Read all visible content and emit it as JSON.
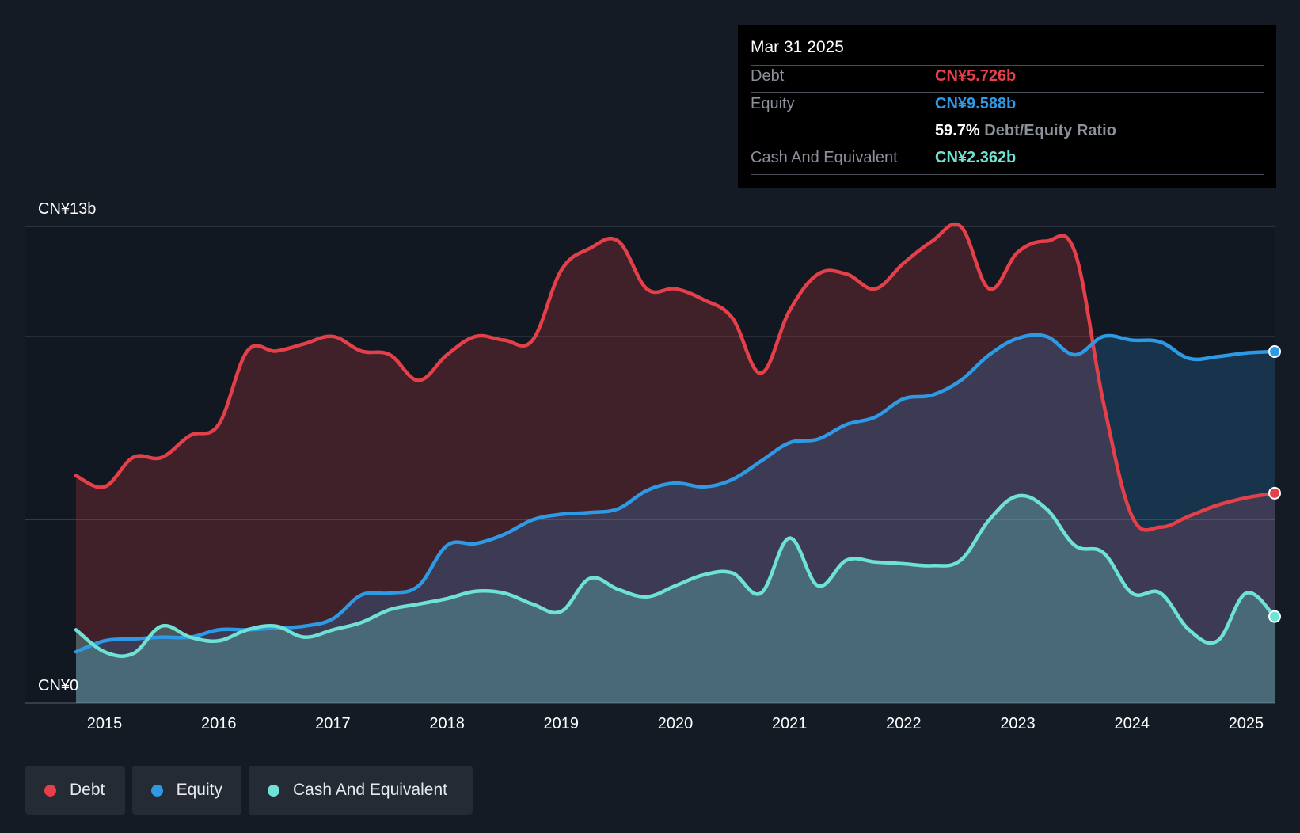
{
  "tooltip": {
    "date": "Mar 31 2025",
    "rows": [
      {
        "label": "Debt",
        "value": "CN¥5.726b",
        "color": "#e5404a"
      },
      {
        "label": "Equity",
        "value": "CN¥9.588b",
        "color": "#2e9ae6"
      },
      {
        "label": "Cash And Equivalent",
        "value": "CN¥2.362b",
        "color": "#6ee3d5"
      }
    ],
    "ratio_value": "59.7%",
    "ratio_label": "Debt/Equity Ratio"
  },
  "legend": [
    {
      "label": "Debt",
      "color": "#e5404a"
    },
    {
      "label": "Equity",
      "color": "#2e9ae6"
    },
    {
      "label": "Cash And Equivalent",
      "color": "#6ee3d5"
    }
  ],
  "chart_data": {
    "type": "area",
    "title": "",
    "xlabel": "",
    "ylabel": "",
    "ylim": [
      0,
      13
    ],
    "y_unit": "CN¥ billions",
    "y_tick_labels": [
      {
        "value": 13,
        "label": "CN¥13b"
      },
      {
        "value": 0,
        "label": "CN¥0"
      }
    ],
    "gridline_values": [
      13,
      10,
      5,
      0
    ],
    "xlim": [
      2014.75,
      2025.25
    ],
    "x_ticks": [
      2015,
      2016,
      2017,
      2018,
      2019,
      2020,
      2021,
      2022,
      2023,
      2024,
      2025
    ],
    "x_tick_labels": [
      "2015",
      "2016",
      "2017",
      "2018",
      "2019",
      "2020",
      "2021",
      "2022",
      "2023",
      "2024",
      "2025"
    ],
    "forecast_start": 2023.8,
    "x": [
      2014.75,
      2015.0,
      2015.25,
      2015.5,
      2015.75,
      2016.0,
      2016.25,
      2016.5,
      2016.75,
      2017.0,
      2017.25,
      2017.5,
      2017.75,
      2018.0,
      2018.25,
      2018.5,
      2018.75,
      2019.0,
      2019.25,
      2019.5,
      2019.75,
      2020.0,
      2020.25,
      2020.5,
      2020.75,
      2021.0,
      2021.25,
      2021.5,
      2021.75,
      2022.0,
      2022.25,
      2022.5,
      2022.75,
      2023.0,
      2023.25,
      2023.5,
      2023.75,
      2024.0,
      2024.25,
      2024.5,
      2024.75,
      2025.0,
      2025.25
    ],
    "series": [
      {
        "name": "Debt",
        "color": "#e5404a",
        "values": [
          6.2,
          5.9,
          6.7,
          6.7,
          7.3,
          7.6,
          9.6,
          9.6,
          9.8,
          10.0,
          9.6,
          9.5,
          8.8,
          9.5,
          10.0,
          9.9,
          9.9,
          11.8,
          12.4,
          12.6,
          11.3,
          11.3,
          11.0,
          10.5,
          9.0,
          10.7,
          11.7,
          11.7,
          11.3,
          12.0,
          12.6,
          13.0,
          11.3,
          12.3,
          12.6,
          12.3,
          8.2,
          5.1,
          4.8,
          5.1,
          5.4,
          5.6,
          5.726
        ]
      },
      {
        "name": "Equity",
        "color": "#2e9ae6",
        "values": [
          1.4,
          1.7,
          1.75,
          1.8,
          1.8,
          2.0,
          2.0,
          2.05,
          2.1,
          2.3,
          2.95,
          3.0,
          3.2,
          4.3,
          4.35,
          4.6,
          5.0,
          5.15,
          5.2,
          5.3,
          5.8,
          6.0,
          5.9,
          6.1,
          6.6,
          7.1,
          7.2,
          7.6,
          7.8,
          8.3,
          8.4,
          8.8,
          9.5,
          9.95,
          10.0,
          9.5,
          10.0,
          9.9,
          9.85,
          9.4,
          9.45,
          9.55,
          9.588
        ]
      },
      {
        "name": "Cash And Equivalent",
        "color": "#6ee3d5",
        "values": [
          2.0,
          1.4,
          1.35,
          2.1,
          1.8,
          1.7,
          2.0,
          2.1,
          1.8,
          2.0,
          2.2,
          2.55,
          2.7,
          2.85,
          3.05,
          3.0,
          2.7,
          2.5,
          3.4,
          3.1,
          2.9,
          3.2,
          3.5,
          3.55,
          3.0,
          4.5,
          3.2,
          3.9,
          3.85,
          3.8,
          3.75,
          3.9,
          5.0,
          5.65,
          5.3,
          4.3,
          4.1,
          3.0,
          3.0,
          2.0,
          1.7,
          3.0,
          2.362
        ]
      }
    ]
  }
}
